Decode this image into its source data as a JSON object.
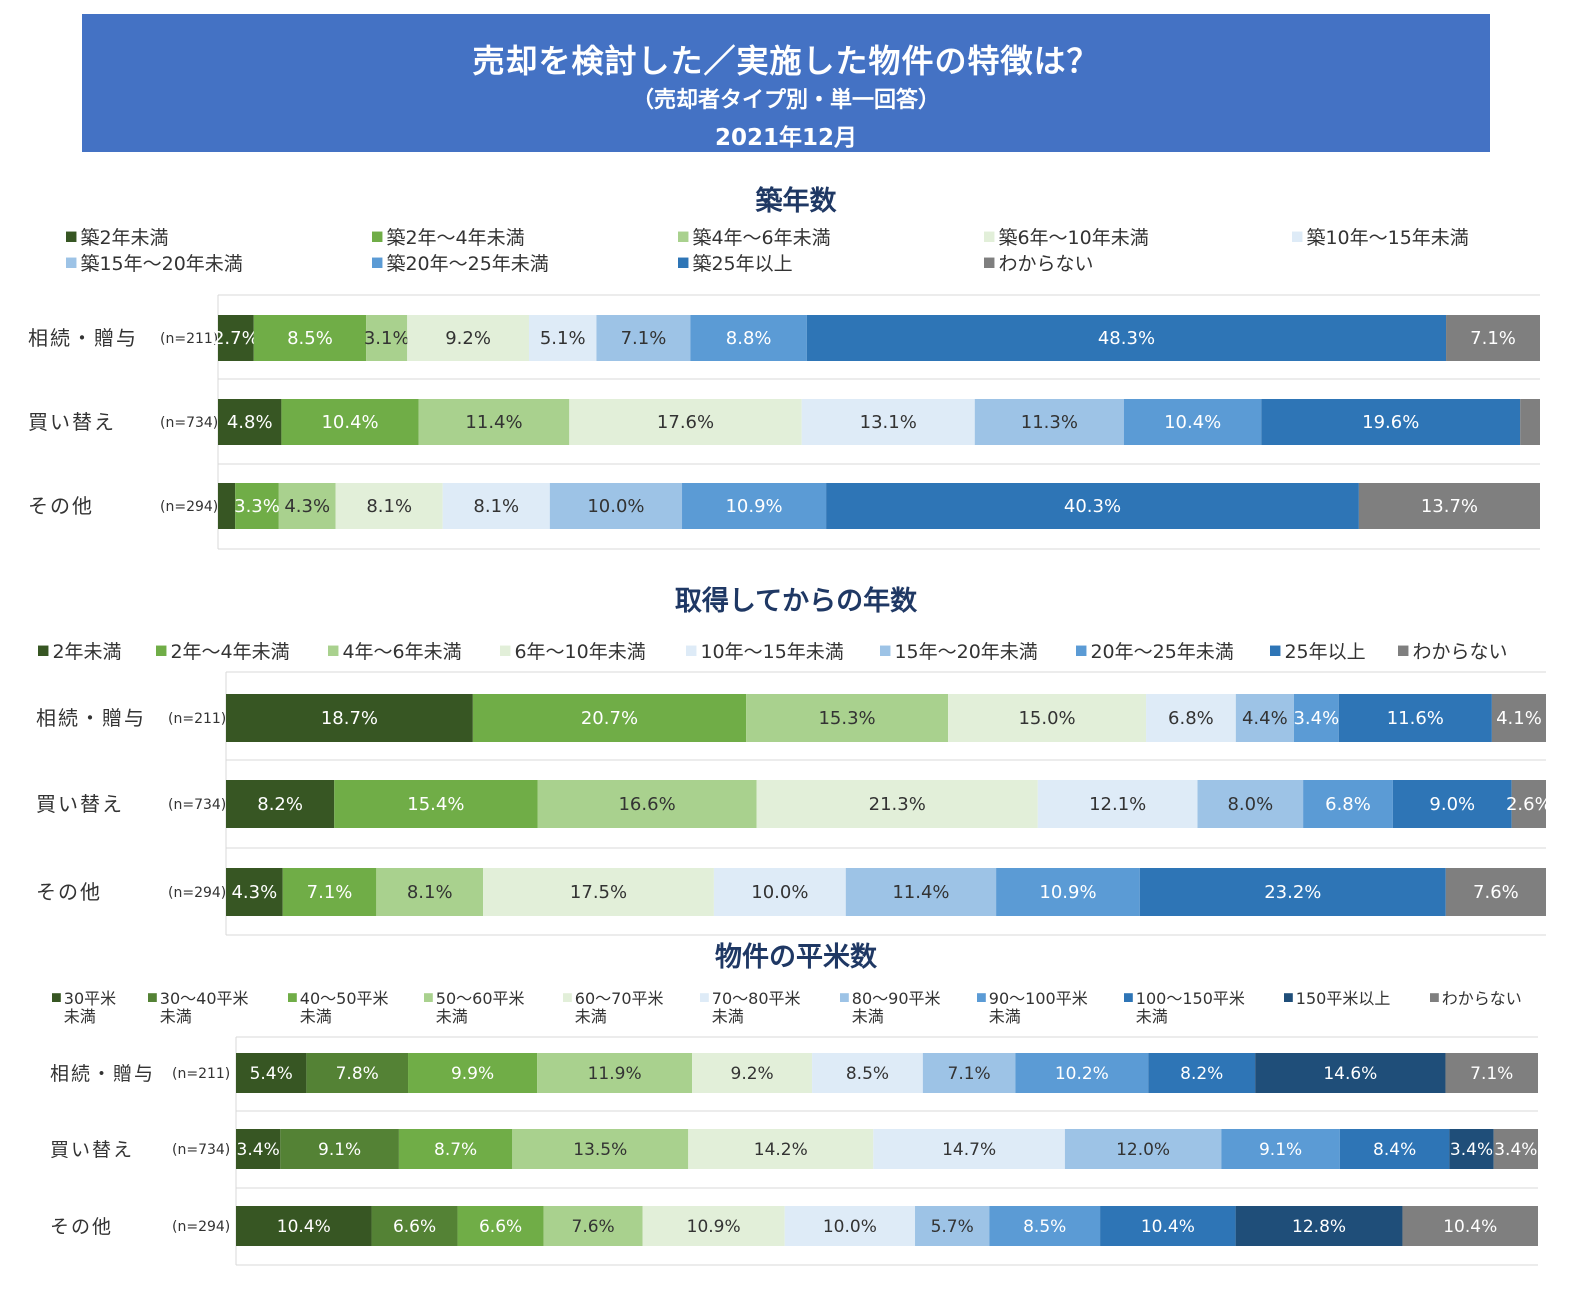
{
  "header": {
    "title": "売却を検討した／実施した物件の特徴は？",
    "subtitle": "（売却者タイプ別・単一回答）",
    "date": "2021年12月"
  },
  "chart_data": [
    {
      "type": "bar",
      "orientation": "horizontal",
      "stacked": "100%",
      "title": "築年数",
      "categories": [
        "相続・贈与",
        "買い替え",
        "その他"
      ],
      "sample_sizes": [
        "(n=211)",
        "(n=734)",
        "(n=294)"
      ],
      "legend_position": "top",
      "series": [
        {
          "name": "築2年未満",
          "color": "#375623",
          "values": [
            2.7,
            4.8,
            1.3
          ]
        },
        {
          "name": "築2年～4年未満",
          "color": "#70ad47",
          "values": [
            8.5,
            10.4,
            3.3
          ]
        },
        {
          "name": "築4年～6年未満",
          "color": "#a9d18e",
          "values": [
            3.1,
            11.4,
            4.3
          ]
        },
        {
          "name": "築6年～10年未満",
          "color": "#e2efd9",
          "values": [
            9.2,
            17.6,
            8.1
          ]
        },
        {
          "name": "築10年～15年未満",
          "color": "#deebf7",
          "values": [
            5.1,
            13.1,
            8.1
          ]
        },
        {
          "name": "築15年～20年未満",
          "color": "#9dc3e6",
          "values": [
            7.1,
            11.3,
            10.0
          ]
        },
        {
          "name": "築20年～25年未満",
          "color": "#5b9bd5",
          "values": [
            8.8,
            10.4,
            10.9
          ]
        },
        {
          "name": "築25年以上",
          "color": "#2e75b6",
          "values": [
            48.3,
            19.6,
            40.3
          ]
        },
        {
          "name": "わからない",
          "color": "#7f7f7f",
          "values": [
            7.1,
            1.5,
            13.7
          ]
        }
      ],
      "labels": [
        [
          "2.7%",
          "8.5%",
          "3.1%",
          "9.2%",
          "5.1%",
          "7.1%",
          "8.8%",
          "48.3%",
          "7.1%"
        ],
        [
          "4.8%",
          "10.4%",
          "11.4%",
          "17.6%",
          "13.1%",
          "11.3%",
          "10.4%",
          "19.6%",
          ""
        ],
        [
          "",
          "3.3%",
          "4.3%",
          "8.1%",
          "8.1%",
          "10.0%",
          "10.9%",
          "40.3%",
          "13.7%"
        ]
      ]
    },
    {
      "type": "bar",
      "orientation": "horizontal",
      "stacked": "100%",
      "title": "取得してからの年数",
      "categories": [
        "相続・贈与",
        "買い替え",
        "その他"
      ],
      "sample_sizes": [
        "(n=211)",
        "(n=734)",
        "(n=294)"
      ],
      "legend_position": "top",
      "series": [
        {
          "name": "2年未満",
          "color": "#375623",
          "values": [
            18.7,
            8.2,
            4.3
          ]
        },
        {
          "name": "2年～4年未満",
          "color": "#70ad47",
          "values": [
            20.7,
            15.4,
            7.1
          ]
        },
        {
          "name": "4年～6年未満",
          "color": "#a9d18e",
          "values": [
            15.3,
            16.6,
            8.1
          ]
        },
        {
          "name": "6年～10年未満",
          "color": "#e2efd9",
          "values": [
            15.0,
            21.3,
            17.5
          ]
        },
        {
          "name": "10年～15年未満",
          "color": "#deebf7",
          "values": [
            6.8,
            12.1,
            10.0
          ]
        },
        {
          "name": "15年～20年未満",
          "color": "#9dc3e6",
          "values": [
            4.4,
            8.0,
            11.4
          ]
        },
        {
          "name": "20年～25年未満",
          "color": "#5b9bd5",
          "values": [
            3.4,
            6.8,
            10.9
          ]
        },
        {
          "name": "25年以上",
          "color": "#2e75b6",
          "values": [
            11.6,
            9.0,
            23.2
          ]
        },
        {
          "name": "わからない",
          "color": "#7f7f7f",
          "values": [
            4.1,
            2.6,
            7.6
          ]
        }
      ],
      "labels": [
        [
          "18.7%",
          "20.7%",
          "15.3%",
          "15.0%",
          "6.8%",
          "4.4%",
          "3.4%",
          "11.6%",
          "4.1%"
        ],
        [
          "8.2%",
          "15.4%",
          "16.6%",
          "21.3%",
          "12.1%",
          "8.0%",
          "6.8%",
          "9.0%",
          "2.6%"
        ],
        [
          "4.3%",
          "7.1%",
          "8.1%",
          "17.5%",
          "10.0%",
          "11.4%",
          "10.9%",
          "23.2%",
          "7.6%"
        ]
      ]
    },
    {
      "type": "bar",
      "orientation": "horizontal",
      "stacked": "100%",
      "title": "物件の平米数",
      "categories": [
        "相続・贈与",
        "買い替え",
        "その他"
      ],
      "sample_sizes": [
        "(n=211)",
        "(n=734)",
        "(n=294)"
      ],
      "legend_position": "top",
      "series": [
        {
          "name": "30平米未満",
          "color": "#375623",
          "values": [
            5.4,
            3.4,
            10.4
          ]
        },
        {
          "name": "30～40平米未満",
          "color": "#548235",
          "values": [
            7.8,
            9.1,
            6.6
          ]
        },
        {
          "name": "40～50平米未満",
          "color": "#70ad47",
          "values": [
            9.9,
            8.7,
            6.6
          ]
        },
        {
          "name": "50～60平米未満",
          "color": "#a9d18e",
          "values": [
            11.9,
            13.5,
            7.6
          ]
        },
        {
          "name": "60～70平米未満",
          "color": "#e2efd9",
          "values": [
            9.2,
            14.2,
            10.9
          ]
        },
        {
          "name": "70～80平米未満",
          "color": "#deebf7",
          "values": [
            8.5,
            14.7,
            10.0
          ]
        },
        {
          "name": "80～90平米未満",
          "color": "#9dc3e6",
          "values": [
            7.1,
            12.0,
            5.7
          ]
        },
        {
          "name": "90～100平米未満",
          "color": "#5b9bd5",
          "values": [
            10.2,
            9.1,
            8.5
          ]
        },
        {
          "name": "100～150平米未満",
          "color": "#2e75b6",
          "values": [
            8.2,
            8.4,
            10.4
          ]
        },
        {
          "name": "150平米以上",
          "color": "#1f4e79",
          "values": [
            14.6,
            3.4,
            12.8
          ]
        },
        {
          "name": "わからない",
          "color": "#7f7f7f",
          "values": [
            7.1,
            3.4,
            10.4
          ]
        }
      ],
      "labels": [
        [
          "5.4%",
          "7.8%",
          "9.9%",
          "11.9%",
          "9.2%",
          "8.5%",
          "7.1%",
          "10.2%",
          "8.2%",
          "14.6%",
          "7.1%"
        ],
        [
          "3.4%",
          "9.1%",
          "8.7%",
          "13.5%",
          "14.2%",
          "14.7%",
          "12.0%",
          "9.1%",
          "8.4%",
          "3.4%",
          "3.4%"
        ],
        [
          "10.4%",
          "6.6%",
          "6.6%",
          "7.6%",
          "10.9%",
          "10.0%",
          "5.7%",
          "8.5%",
          "10.4%",
          "12.8%",
          "10.4%"
        ]
      ]
    }
  ]
}
